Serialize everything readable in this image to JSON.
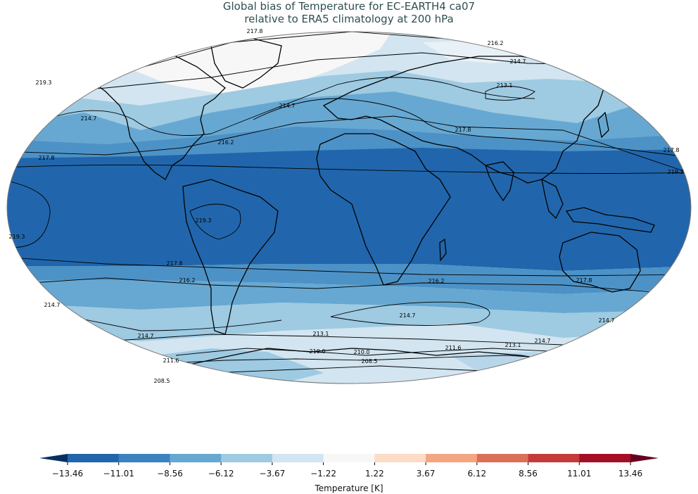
{
  "title": {
    "line1": "Global bias of Temperature for EC-EARTH4 ca07",
    "line2": "relative to ERA5 climatology at 200 hPa"
  },
  "map": {
    "projection": "robinson",
    "contour_labels": [
      {
        "text": "217.8",
        "pos": [
          362,
          47
        ]
      },
      {
        "text": "216.2",
        "pos": [
          704,
          64
        ]
      },
      {
        "text": "214.7",
        "pos": [
          736,
          90
        ]
      },
      {
        "text": "219.3",
        "pos": [
          62,
          120
        ]
      },
      {
        "text": "213.1",
        "pos": [
          717,
          124
        ]
      },
      {
        "text": "214.7",
        "pos": [
          408,
          153
        ]
      },
      {
        "text": "214.7",
        "pos": [
          126,
          171
        ]
      },
      {
        "text": "217.8",
        "pos": [
          658,
          187
        ]
      },
      {
        "text": "216.2",
        "pos": [
          321,
          205
        ]
      },
      {
        "text": "217.8",
        "pos": [
          954,
          216
        ]
      },
      {
        "text": "217.8",
        "pos": [
          66,
          227
        ]
      },
      {
        "text": "219.3",
        "pos": [
          960,
          247
        ]
      },
      {
        "text": "219.3",
        "pos": [
          289,
          316
        ]
      },
      {
        "text": "219.3",
        "pos": [
          24,
          339
        ]
      },
      {
        "text": "217.8",
        "pos": [
          248,
          377
        ]
      },
      {
        "text": "216.2",
        "pos": [
          266,
          401
        ]
      },
      {
        "text": "216.2",
        "pos": [
          620,
          402
        ]
      },
      {
        "text": "217.8",
        "pos": [
          830,
          401
        ]
      },
      {
        "text": "214.7",
        "pos": [
          74,
          436
        ]
      },
      {
        "text": "214.7",
        "pos": [
          579,
          451
        ]
      },
      {
        "text": "214.7",
        "pos": [
          862,
          458
        ]
      },
      {
        "text": "214.7",
        "pos": [
          207,
          480
        ]
      },
      {
        "text": "213.1",
        "pos": [
          456,
          477
        ]
      },
      {
        "text": "214.7",
        "pos": [
          771,
          487
        ]
      },
      {
        "text": "210.0",
        "pos": [
          451,
          502
        ]
      },
      {
        "text": "210.0",
        "pos": [
          514,
          503
        ]
      },
      {
        "text": "211.6",
        "pos": [
          644,
          497
        ]
      },
      {
        "text": "213.1",
        "pos": [
          729,
          493
        ]
      },
      {
        "text": "211.6",
        "pos": [
          243,
          515
        ]
      },
      {
        "text": "208.5",
        "pos": [
          525,
          516
        ]
      },
      {
        "text": "208.5",
        "pos": [
          230,
          544
        ]
      }
    ]
  },
  "colorbar": {
    "label": "Temperature [K]",
    "ticks": [
      "−13.46",
      "−11.01",
      "−8.56",
      "−6.12",
      "−3.67",
      "−1.22",
      "1.22",
      "3.67",
      "6.12",
      "8.56",
      "11.01",
      "13.46"
    ],
    "colors": [
      "#2166ac",
      "#3a83bf",
      "#67a8d2",
      "#9ecae2",
      "#d2e5f0",
      "#f7f7f7",
      "#fcdbc7",
      "#f4a582",
      "#dc6f5a",
      "#c53b3c",
      "#a50f26"
    ],
    "under_color": "#053061",
    "over_color": "#67001f"
  },
  "colors": {
    "title": "#2f4f4f",
    "ocean_deep": "#2166ac"
  }
}
